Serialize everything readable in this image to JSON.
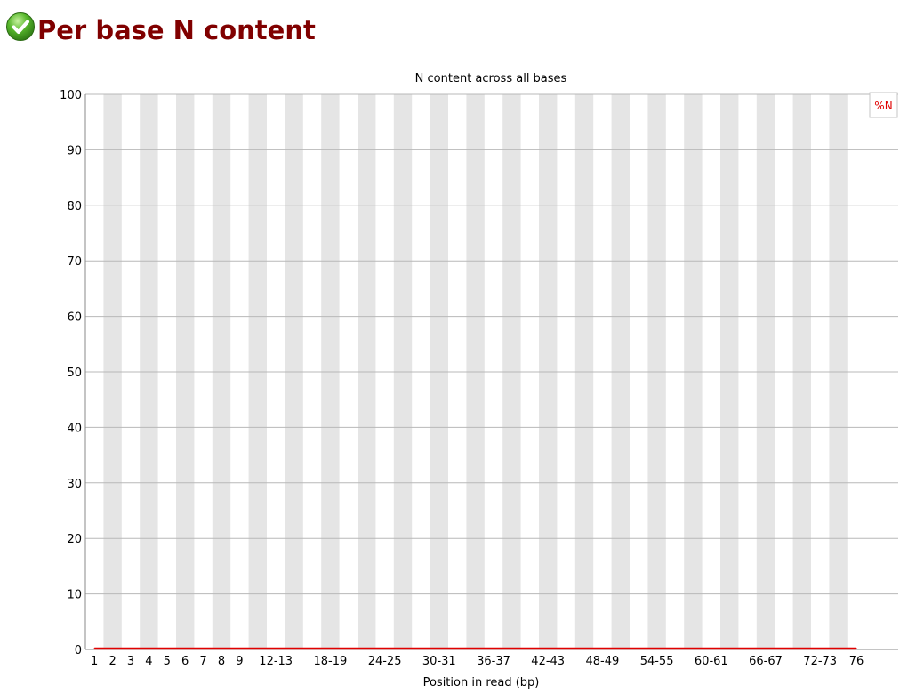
{
  "module": {
    "title": "Per base N content",
    "status": "pass",
    "status_icon": "check-circle-icon",
    "title_color": "#800000"
  },
  "chart_data": {
    "type": "line",
    "title": "N content across all bases",
    "xlabel": "Position in read (bp)",
    "ylabel": "",
    "ylim": [
      0,
      100
    ],
    "y_ticks": [
      0,
      10,
      20,
      30,
      40,
      50,
      60,
      70,
      80,
      90,
      100
    ],
    "categories": [
      "1",
      "2",
      "3",
      "4",
      "5",
      "6",
      "7",
      "8",
      "9",
      "10-11",
      "12-13",
      "14-15",
      "16-17",
      "18-19",
      "20-21",
      "22-23",
      "24-25",
      "26-27",
      "28-29",
      "30-31",
      "32-33",
      "34-35",
      "36-37",
      "38-39",
      "40-41",
      "42-43",
      "44-45",
      "46-47",
      "48-49",
      "50-51",
      "52-53",
      "54-55",
      "56-57",
      "58-59",
      "60-61",
      "62-63",
      "64-65",
      "66-67",
      "68-69",
      "70-71",
      "72-73",
      "74-75",
      "76"
    ],
    "x_tick_labels": [
      "1",
      "2",
      "3",
      "4",
      "5",
      "6",
      "7",
      "8",
      "9",
      "12-13",
      "18-19",
      "24-25",
      "30-31",
      "36-37",
      "42-43",
      "48-49",
      "54-55",
      "60-61",
      "66-67",
      "72-73",
      "76"
    ],
    "series": [
      {
        "name": "%N",
        "color": "#e00000",
        "values": [
          0,
          0,
          0,
          0,
          0,
          0,
          0,
          0,
          0,
          0,
          0,
          0,
          0,
          0,
          0,
          0,
          0,
          0,
          0,
          0,
          0,
          0,
          0,
          0,
          0,
          0,
          0,
          0,
          0,
          0,
          0,
          0,
          0,
          0,
          0,
          0,
          0,
          0,
          0,
          0,
          0,
          0,
          0
        ]
      }
    ],
    "legend_position": "top-right",
    "grid": true,
    "band_color": "#e5e5e5",
    "grid_color": "#b8b8b8"
  }
}
